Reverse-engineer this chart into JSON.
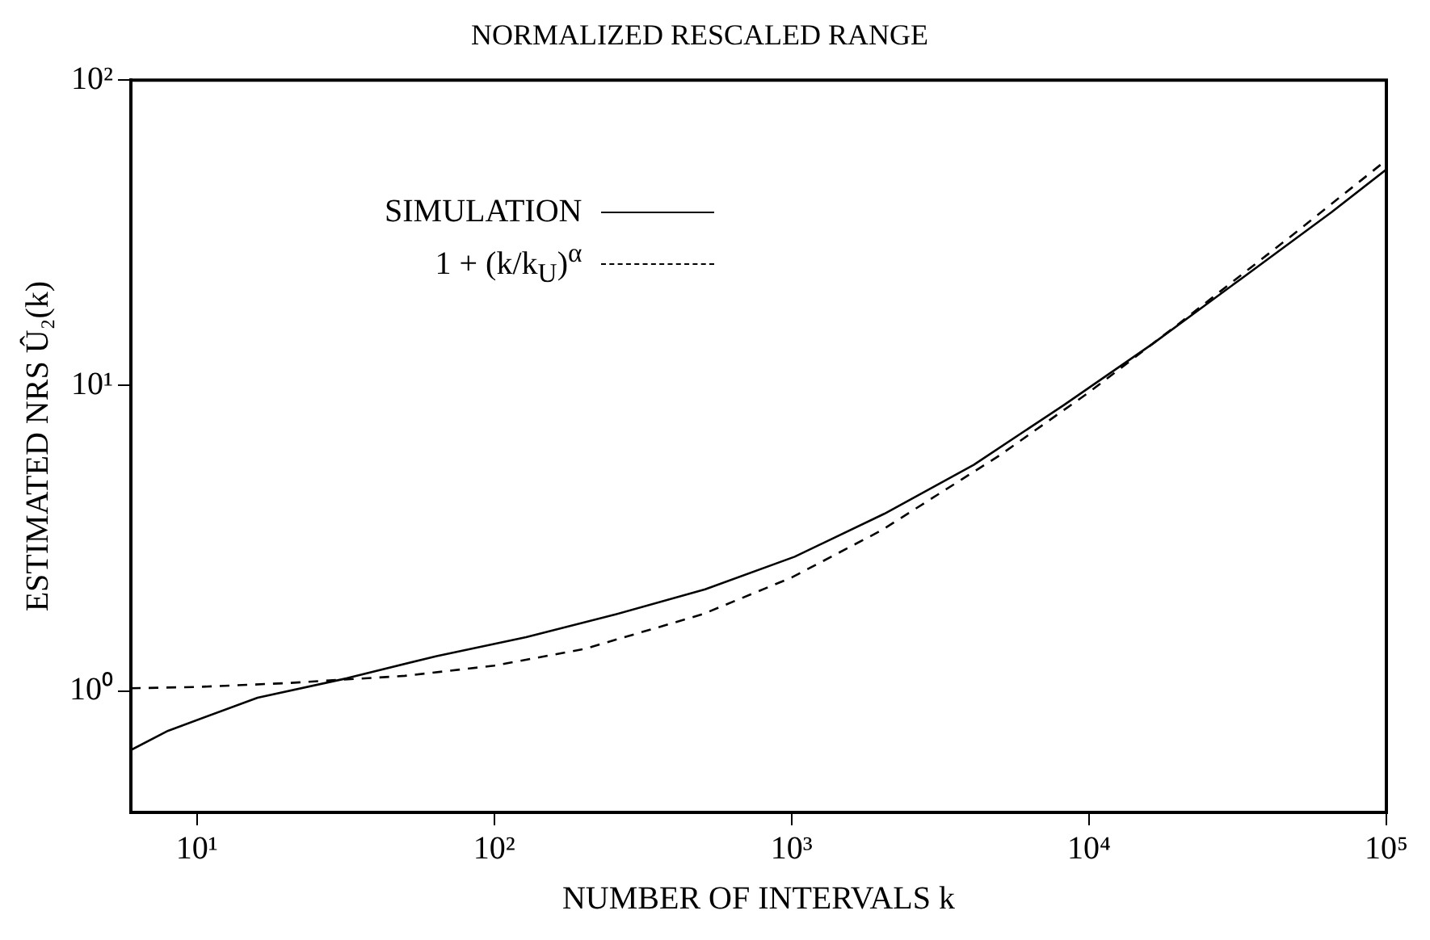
{
  "chart_data": {
    "type": "line",
    "title": "NORMALIZED RESCALED RANGE",
    "xlabel": "NUMBER OF INTERVALS k",
    "ylabel": "ESTIMATED NRS Û₂(k)",
    "log": "xy",
    "grid": false,
    "legend": "top left",
    "marker": "none",
    "xlim": [
      6,
      100000
    ],
    "xticks": [
      {
        "value": 10,
        "label": "10¹"
      },
      {
        "value": 100,
        "label": "10²"
      },
      {
        "value": 1000,
        "label": "10³"
      },
      {
        "value": 10000,
        "label": "10⁴"
      },
      {
        "value": 100000,
        "label": "10⁵"
      }
    ],
    "ylim": [
      0.4,
      100
    ],
    "yticks": [
      {
        "value": 1,
        "label": "10⁰"
      },
      {
        "value": 10,
        "label": "10¹"
      },
      {
        "value": 100,
        "label": "10²"
      }
    ],
    "series": [
      {
        "name": "SIMULATION",
        "color": "#000000",
        "line_style": "solid",
        "x": [
          6,
          8,
          16,
          32,
          64,
          128,
          256,
          512,
          1024,
          2048,
          4096,
          8192,
          16384,
          32768,
          65536,
          100000
        ],
        "values": [
          0.64,
          0.74,
          0.95,
          1.1,
          1.3,
          1.5,
          1.78,
          2.15,
          2.75,
          3.8,
          5.5,
          8.6,
          13.7,
          22.5,
          37,
          51
        ]
      },
      {
        "name": "1 + (k/k$_{U}$)$^{α}$",
        "color": "#000000",
        "line_style": "dashed",
        "x": [
          6,
          10,
          20,
          50,
          100,
          200,
          500,
          1000,
          2000,
          5000,
          10000,
          20000,
          50000,
          100000
        ],
        "values": [
          1.02,
          1.03,
          1.06,
          1.12,
          1.21,
          1.37,
          1.78,
          2.35,
          3.35,
          5.9,
          9.5,
          15.9,
          31.9,
          54.7
        ]
      }
    ]
  }
}
